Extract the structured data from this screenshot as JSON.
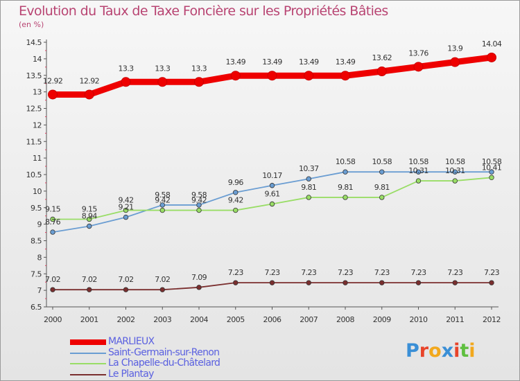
{
  "title": "Evolution du Taux de Taxe Foncière sur les Propriétés Bâties",
  "unit": "(en %)",
  "brand": {
    "letters": [
      {
        "ch": "P",
        "color": "#3a8fd6"
      },
      {
        "ch": "r",
        "color": "#e8442a"
      },
      {
        "ch": "o",
        "color": "#f2a81d"
      },
      {
        "ch": "x",
        "color": "#3a8fd6"
      },
      {
        "ch": "i",
        "color": "#e8442a"
      },
      {
        "ch": "t",
        "color": "#5fbf3f"
      },
      {
        "ch": "i",
        "color": "#f2a81d"
      }
    ]
  },
  "chart_data": {
    "type": "line",
    "x": [
      "2000",
      "2001",
      "2002",
      "2003",
      "2004",
      "2005",
      "2006",
      "2007",
      "2008",
      "2009",
      "2010",
      "2011",
      "2012"
    ],
    "ylim": [
      6.5,
      14.5
    ],
    "yticks": [
      "6.5",
      "7",
      "7.5",
      "8",
      "8.5",
      "9",
      "9.5",
      "10",
      "10.5",
      "11",
      "11.5",
      "12",
      "12.5",
      "13",
      "13.5",
      "14",
      "14.5"
    ],
    "grid": false,
    "legend_position": "bottom-left",
    "series": [
      {
        "name": "MARLIEUX",
        "color": "#ee0000",
        "values": [
          12.92,
          12.92,
          13.3,
          13.3,
          13.3,
          13.49,
          13.49,
          13.49,
          13.49,
          13.62,
          13.76,
          13.9,
          14.04
        ],
        "labels": [
          "12.92",
          "12.92",
          "13.3",
          "13.3",
          "13.3",
          "13.49",
          "13.49",
          "13.49",
          "13.49",
          "13.62",
          "13.76",
          "13.9",
          "14.04"
        ]
      },
      {
        "name": "Saint-Germain-sur-Renon",
        "color": "#6a9dd2",
        "values": [
          8.76,
          8.94,
          9.21,
          9.58,
          9.58,
          9.96,
          10.17,
          10.37,
          10.58,
          10.58,
          10.58,
          10.58,
          10.58
        ],
        "labels": [
          "8.76",
          "8.94",
          "9.21",
          "9.58",
          "9.58",
          "9.96",
          "10.17",
          "10.37",
          "10.58",
          "10.58",
          "10.58",
          "10.58",
          "10.58"
        ]
      },
      {
        "name": "La Chapelle-du-Châtelard",
        "color": "#99dd66",
        "values": [
          9.15,
          9.15,
          9.42,
          9.42,
          9.42,
          9.42,
          9.61,
          9.81,
          9.81,
          9.81,
          10.31,
          10.31,
          10.41
        ],
        "labels": [
          "9.15",
          "9.15",
          "9.42",
          "9.42",
          "9.42",
          "9.42",
          "9.61",
          "9.81",
          "9.81",
          "9.81",
          "10.31",
          "10.31",
          "10.41"
        ]
      },
      {
        "name": "Le Plantay",
        "color": "#7a2e2e",
        "values": [
          7.02,
          7.02,
          7.02,
          7.02,
          7.09,
          7.23,
          7.23,
          7.23,
          7.23,
          7.23,
          7.23,
          7.23,
          7.23
        ],
        "labels": [
          "7.02",
          "7.02",
          "7.02",
          "7.02",
          "7.09",
          "7.23",
          "7.23",
          "7.23",
          "7.23",
          "7.23",
          "7.23",
          "7.23",
          "7.23"
        ]
      }
    ]
  }
}
